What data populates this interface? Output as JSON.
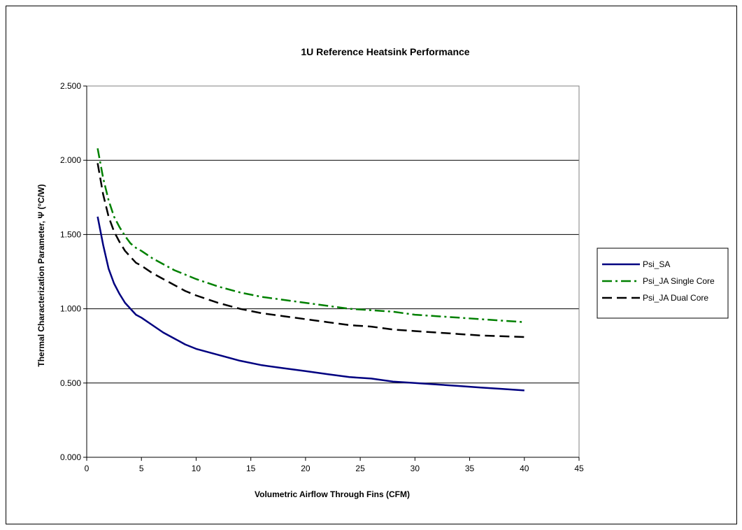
{
  "chart_data": {
    "type": "line",
    "title": "1U Reference Heatsink Performance",
    "xlabel": "Volumetric Airflow Through Fins (CFM)",
    "ylabel": "Thermal Characterization Parameter, Ψ (°C/W)",
    "xlim": [
      0,
      45
    ],
    "ylim": [
      0,
      2.5
    ],
    "x_ticks": [
      0,
      5,
      10,
      15,
      20,
      25,
      30,
      35,
      40,
      45
    ],
    "y_ticks": [
      0,
      0.5,
      1.0,
      1.5,
      2.0,
      2.5
    ],
    "x_tick_labels": [
      "0",
      "5",
      "10",
      "15",
      "20",
      "25",
      "30",
      "35",
      "40",
      "45"
    ],
    "y_tick_labels": [
      "0.000",
      "0.500",
      "1.000",
      "1.500",
      "2.000",
      "2.500"
    ],
    "grid": "horizontal",
    "legend": "right",
    "series": [
      {
        "name": "Psi_SA",
        "color": "#000080",
        "style": "solid",
        "points": [
          [
            1,
            1.62
          ],
          [
            1.5,
            1.43
          ],
          [
            2,
            1.27
          ],
          [
            2.5,
            1.17
          ],
          [
            3,
            1.1
          ],
          [
            3.5,
            1.04
          ],
          [
            4,
            1.0
          ],
          [
            4.5,
            0.96
          ],
          [
            5,
            0.94
          ],
          [
            6,
            0.89
          ],
          [
            7,
            0.84
          ],
          [
            8,
            0.8
          ],
          [
            9,
            0.76
          ],
          [
            10,
            0.73
          ],
          [
            12,
            0.69
          ],
          [
            14,
            0.65
          ],
          [
            16,
            0.62
          ],
          [
            18,
            0.6
          ],
          [
            20,
            0.58
          ],
          [
            22,
            0.56
          ],
          [
            24,
            0.54
          ],
          [
            26,
            0.53
          ],
          [
            28,
            0.51
          ],
          [
            30,
            0.5
          ],
          [
            32,
            0.49
          ],
          [
            34,
            0.48
          ],
          [
            36,
            0.47
          ],
          [
            38,
            0.46
          ],
          [
            40,
            0.45
          ]
        ]
      },
      {
        "name": "Psi_JA Single Core",
        "color": "#008000",
        "style": "dash-dot",
        "points": [
          [
            1,
            2.08
          ],
          [
            1.5,
            1.88
          ],
          [
            2,
            1.73
          ],
          [
            2.5,
            1.62
          ],
          [
            3,
            1.55
          ],
          [
            3.5,
            1.49
          ],
          [
            4,
            1.44
          ],
          [
            4.5,
            1.41
          ],
          [
            5,
            1.39
          ],
          [
            6,
            1.34
          ],
          [
            7,
            1.3
          ],
          [
            8,
            1.26
          ],
          [
            9,
            1.23
          ],
          [
            10,
            1.2
          ],
          [
            12,
            1.15
          ],
          [
            14,
            1.11
          ],
          [
            16,
            1.08
          ],
          [
            18,
            1.06
          ],
          [
            20,
            1.04
          ],
          [
            22,
            1.02
          ],
          [
            24,
            1.0
          ],
          [
            26,
            0.99
          ],
          [
            28,
            0.98
          ],
          [
            30,
            0.96
          ],
          [
            32,
            0.95
          ],
          [
            34,
            0.94
          ],
          [
            36,
            0.93
          ],
          [
            38,
            0.92
          ],
          [
            40,
            0.91
          ]
        ]
      },
      {
        "name": "Psi_JA Dual Core",
        "color": "#000000",
        "style": "dash",
        "points": [
          [
            1,
            1.98
          ],
          [
            1.5,
            1.77
          ],
          [
            2,
            1.62
          ],
          [
            2.5,
            1.52
          ],
          [
            3,
            1.45
          ],
          [
            3.5,
            1.39
          ],
          [
            4,
            1.35
          ],
          [
            4.5,
            1.31
          ],
          [
            5,
            1.29
          ],
          [
            6,
            1.24
          ],
          [
            7,
            1.2
          ],
          [
            8,
            1.16
          ],
          [
            9,
            1.12
          ],
          [
            10,
            1.09
          ],
          [
            12,
            1.04
          ],
          [
            14,
            1.0
          ],
          [
            16,
            0.97
          ],
          [
            18,
            0.95
          ],
          [
            20,
            0.93
          ],
          [
            22,
            0.91
          ],
          [
            24,
            0.89
          ],
          [
            26,
            0.88
          ],
          [
            28,
            0.86
          ],
          [
            30,
            0.85
          ],
          [
            32,
            0.84
          ],
          [
            34,
            0.83
          ],
          [
            36,
            0.82
          ],
          [
            38,
            0.815
          ],
          [
            40,
            0.81
          ]
        ]
      }
    ]
  }
}
